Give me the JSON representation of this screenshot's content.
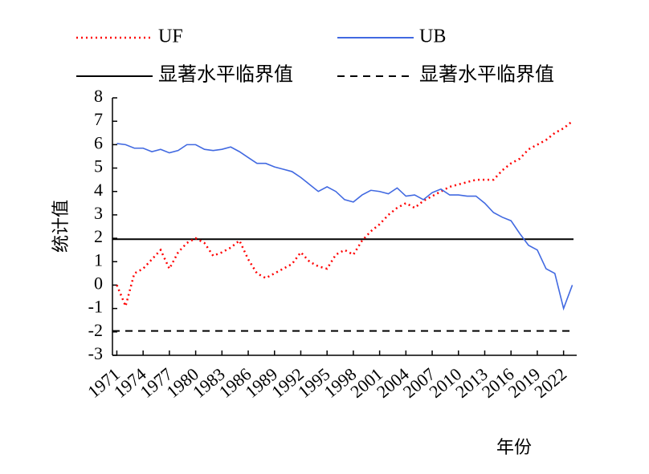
{
  "chart_data": {
    "type": "line",
    "xlabel": "年份",
    "ylabel": "统计值",
    "x": [
      1971,
      1972,
      1973,
      1974,
      1975,
      1976,
      1977,
      1978,
      1979,
      1980,
      1981,
      1982,
      1983,
      1984,
      1985,
      1986,
      1987,
      1988,
      1989,
      1990,
      1991,
      1992,
      1993,
      1994,
      1995,
      1996,
      1997,
      1998,
      1999,
      2000,
      2001,
      2002,
      2003,
      2004,
      2005,
      2006,
      2007,
      2008,
      2009,
      2010,
      2011,
      2012,
      2013,
      2014,
      2015,
      2016,
      2017,
      2018,
      2019,
      2020,
      2021,
      2022,
      2023
    ],
    "series": [
      {
        "name": "UF",
        "color": "#ff0000",
        "style": "dotted",
        "values": [
          0,
          -0.9,
          0.5,
          0.7,
          1.1,
          1.5,
          0.7,
          1.4,
          1.8,
          2.0,
          1.8,
          1.25,
          1.4,
          1.6,
          1.9,
          1.1,
          0.5,
          0.3,
          0.5,
          0.7,
          0.9,
          1.4,
          1.0,
          0.8,
          0.7,
          1.3,
          1.5,
          1.3,
          1.9,
          2.3,
          2.6,
          3.0,
          3.3,
          3.5,
          3.3,
          3.6,
          3.8,
          4.0,
          4.2,
          4.3,
          4.4,
          4.5,
          4.5,
          4.5,
          4.9,
          5.2,
          5.4,
          5.8,
          6.0,
          6.2,
          6.5,
          6.7,
          7.0
        ]
      },
      {
        "name": "UB",
        "color": "#4169e1",
        "style": "solid",
        "values": [
          6.05,
          6.0,
          5.85,
          5.85,
          5.7,
          5.8,
          5.65,
          5.75,
          6.0,
          6.0,
          5.8,
          5.75,
          5.8,
          5.9,
          5.7,
          5.45,
          5.2,
          5.2,
          5.05,
          4.95,
          4.85,
          4.6,
          4.3,
          4.0,
          4.2,
          4.0,
          3.65,
          3.55,
          3.85,
          4.05,
          4.0,
          3.9,
          4.15,
          3.8,
          3.85,
          3.65,
          3.95,
          4.1,
          3.85,
          3.85,
          3.8,
          3.8,
          3.5,
          3.1,
          2.9,
          2.75,
          2.2,
          1.7,
          1.5,
          0.7,
          0.5,
          -1.0,
          0.0
        ]
      }
    ],
    "reference_lines": [
      {
        "name": "显著水平临界值",
        "color": "#000000",
        "style": "solid",
        "value": 1.96
      },
      {
        "name": "显著水平临界值",
        "color": "#000000",
        "style": "dashed",
        "value": -1.96
      }
    ],
    "xlim": [
      1970.5,
      2023.5
    ],
    "xticks": [
      1971,
      1974,
      1977,
      1980,
      1983,
      1986,
      1989,
      1992,
      1995,
      1998,
      2001,
      2004,
      2007,
      2010,
      2013,
      2016,
      2019,
      2022
    ],
    "ylim": [
      -3,
      8
    ],
    "yticks": [
      -3,
      -2,
      -1,
      0,
      1,
      2,
      3,
      4,
      5,
      6,
      7,
      8
    ]
  }
}
